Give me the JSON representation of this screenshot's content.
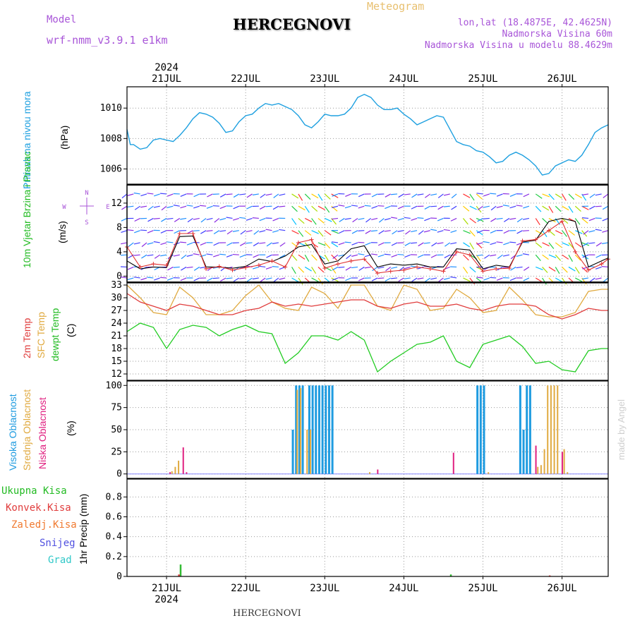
{
  "header": {
    "model_label": "Model",
    "model_name": "wrf-nmm_v3.9.1 e1km",
    "title": "HERCEGNOVI",
    "meteogram": "Meteogram",
    "lonlat": "lon,lat (18.4875E, 42.4625N)",
    "elevation": "Nadmorska Visina 60m",
    "model_elevation": "Nadmorska Visina u modelu 88.4629m"
  },
  "footer": {
    "station": "HERCEGNOVI",
    "credit": "made by Angel"
  },
  "colors": {
    "pressure": "#1ea0e0",
    "wind_speed": "#000000",
    "gust": "#e03030",
    "t2m": "#e03c3c",
    "tsfc": "#e0aa40",
    "dewpt": "#22cc22",
    "high_cloud": "#1e9be0",
    "mid_cloud": "#e0aa40",
    "low_cloud": "#e02080",
    "total_precip": "#33bb33",
    "conv_precip": "#e03c3c"
  },
  "chart_data": [
    {
      "type": "line",
      "panel": "pressure",
      "ylabel": "Pritisak na nivou mora",
      "unit": "(hPa)",
      "year": "2024",
      "days": [
        "21JUL",
        "22JUL",
        "23JUL",
        "24JUL",
        "25JUL",
        "26JUL"
      ],
      "yticks": [
        "1006",
        "1008",
        "1010"
      ],
      "ylim": [
        1005,
        1011.4
      ],
      "x_hours": [
        0,
        1,
        2,
        4,
        6,
        8,
        10,
        12,
        14,
        16,
        18,
        20,
        22,
        24,
        26,
        28,
        30,
        32,
        34,
        36,
        38,
        40,
        42,
        44,
        46,
        48,
        50,
        52,
        54,
        56,
        58,
        60,
        62,
        64,
        66,
        68,
        70,
        72,
        74,
        76,
        78,
        80,
        82,
        84,
        86,
        88,
        90,
        92,
        94,
        96,
        98,
        100,
        102,
        104,
        106,
        108,
        110,
        112,
        114,
        116,
        118,
        120,
        122,
        124,
        126,
        128,
        130,
        132,
        134,
        136,
        138,
        140,
        142,
        144,
        146
      ],
      "values": [
        1008.6,
        1007.6,
        1007.6,
        1007.3,
        1007.4,
        1007.9,
        1008.0,
        1007.9,
        1007.8,
        1008.2,
        1008.7,
        1009.3,
        1009.7,
        1009.6,
        1009.4,
        1009.0,
        1008.4,
        1008.5,
        1009.1,
        1009.5,
        1009.6,
        1010.0,
        1010.3,
        1010.2,
        1010.3,
        1010.1,
        1009.9,
        1009.5,
        1008.9,
        1008.7,
        1009.1,
        1009.6,
        1009.5,
        1009.5,
        1009.6,
        1010.0,
        1010.7,
        1010.9,
        1010.7,
        1010.2,
        1009.9,
        1009.9,
        1010.0,
        1009.6,
        1009.3,
        1008.9,
        1009.1,
        1009.3,
        1009.5,
        1009.4,
        1008.6,
        1007.8,
        1007.6,
        1007.5,
        1007.2,
        1007.1,
        1006.8,
        1006.4,
        1006.5,
        1006.9,
        1007.1,
        1006.9,
        1006.6,
        1006.2,
        1005.6,
        1005.7,
        1006.2,
        1006.4,
        1006.6,
        1006.5,
        1006.9,
        1007.6,
        1008.4,
        1008.7,
        1008.9
      ]
    },
    {
      "type": "line",
      "panel": "wind",
      "ylabel": "10m Vjetar Brzina i Pravac",
      "unit": "(m/s)",
      "compass": {
        "n": "N",
        "w": "W",
        "e": "E",
        "s": "S"
      },
      "yticks": [
        "0",
        "4",
        "8",
        "12"
      ],
      "ylim": [
        -1,
        15
      ],
      "series": [
        {
          "name": "speed",
          "x_hours": [
            0,
            4,
            8,
            12,
            16,
            20,
            24,
            28,
            32,
            36,
            40,
            44,
            48,
            52,
            56,
            60,
            64,
            68,
            72,
            76,
            80,
            84,
            88,
            92,
            96,
            100,
            104,
            108,
            112,
            116,
            120,
            124,
            128,
            132,
            136,
            140,
            144,
            146
          ],
          "values": [
            2.5,
            1.2,
            1.5,
            1.4,
            6.5,
            6.6,
            1.5,
            1.5,
            1.3,
            1.6,
            2.8,
            2.4,
            3.3,
            4.8,
            5.2,
            2.0,
            2.5,
            4.5,
            5.0,
            1.5,
            2.0,
            1.8,
            2.0,
            1.5,
            1.5,
            4.5,
            4.3,
            1.2,
            1.8,
            1.5,
            5.6,
            5.9,
            9.0,
            9.5,
            9.0,
            1.5,
            2.5,
            3.0
          ]
        },
        {
          "name": "gust",
          "x_hours": [
            0,
            4,
            8,
            12,
            16,
            20,
            24,
            28,
            32,
            36,
            40,
            44,
            48,
            52,
            56,
            60,
            64,
            68,
            72,
            76,
            80,
            84,
            88,
            92,
            96,
            100,
            104,
            108,
            112,
            116,
            120,
            124,
            128,
            132,
            136,
            140,
            144,
            146
          ],
          "values": [
            4.8,
            1.5,
            2.0,
            1.8,
            7.0,
            7.0,
            1.2,
            1.6,
            1.0,
            1.4,
            1.8,
            2.5,
            1.5,
            5.5,
            6.0,
            1.3,
            2.0,
            2.5,
            2.8,
            0.5,
            0.8,
            1.0,
            1.5,
            1.2,
            0.8,
            4.0,
            3.5,
            0.8,
            1.2,
            1.3,
            5.8,
            6.0,
            7.5,
            9.0,
            4.0,
            1.0,
            2.0,
            2.8
          ]
        }
      ]
    },
    {
      "type": "line",
      "panel": "temperature",
      "ylabels": [
        "2m Temp",
        "SFC Temp",
        "dewpt Temp"
      ],
      "unit": "(C)",
      "yticks": [
        "12",
        "15",
        "18",
        "21",
        "24",
        "27",
        "30",
        "33"
      ],
      "ylim": [
        10.5,
        33.5
      ],
      "series": [
        {
          "name": "2m Temp",
          "x_hours": [
            0,
            4,
            8,
            12,
            16,
            20,
            24,
            28,
            32,
            36,
            40,
            44,
            48,
            52,
            56,
            60,
            64,
            68,
            72,
            76,
            80,
            84,
            88,
            92,
            96,
            100,
            104,
            108,
            112,
            116,
            120,
            124,
            128,
            132,
            136,
            140,
            144,
            146
          ],
          "values": [
            31.0,
            29.0,
            28.0,
            27.0,
            28.5,
            28.0,
            27.0,
            26.0,
            26.0,
            27.0,
            27.5,
            29.0,
            28.0,
            28.5,
            28.0,
            28.5,
            29.0,
            29.5,
            29.5,
            28.0,
            27.5,
            28.5,
            29.0,
            28.0,
            28.0,
            28.5,
            27.5,
            27.0,
            28.0,
            28.5,
            28.5,
            28.0,
            26.0,
            25.0,
            26.0,
            27.5,
            27.0,
            27.0
          ]
        },
        {
          "name": "SFC Temp",
          "x_hours": [
            0,
            4,
            8,
            12,
            16,
            20,
            24,
            28,
            32,
            36,
            40,
            44,
            48,
            52,
            56,
            60,
            64,
            68,
            72,
            76,
            80,
            84,
            88,
            92,
            96,
            100,
            104,
            108,
            112,
            116,
            120,
            124,
            128,
            132,
            136,
            140,
            144,
            146
          ],
          "values": [
            33.0,
            30.0,
            26.5,
            26.0,
            32.5,
            30.0,
            26.0,
            26.0,
            27.0,
            30.5,
            33.0,
            29.0,
            27.5,
            27.0,
            32.5,
            31.0,
            27.5,
            33.0,
            33.0,
            28.0,
            27.0,
            33.0,
            32.0,
            27.0,
            27.5,
            32.0,
            30.0,
            26.5,
            27.0,
            32.5,
            29.5,
            26.0,
            25.5,
            25.5,
            26.5,
            31.5,
            32.0,
            32.0
          ]
        },
        {
          "name": "dewpt Temp",
          "x_hours": [
            0,
            4,
            8,
            12,
            16,
            20,
            24,
            28,
            32,
            36,
            40,
            44,
            48,
            52,
            56,
            60,
            64,
            68,
            72,
            76,
            80,
            84,
            88,
            92,
            96,
            100,
            104,
            108,
            112,
            116,
            120,
            124,
            128,
            132,
            136,
            140,
            144,
            146
          ],
          "values": [
            22.0,
            24.0,
            23.0,
            18.0,
            22.5,
            23.5,
            23.0,
            21.0,
            22.5,
            23.5,
            22.0,
            21.5,
            14.5,
            17.0,
            21.0,
            21.0,
            20.0,
            22.0,
            20.0,
            12.5,
            15.0,
            17.0,
            19.0,
            19.5,
            21.0,
            15.0,
            13.5,
            19.0,
            20.0,
            21.0,
            18.5,
            14.5,
            15.0,
            13.0,
            12.5,
            17.5,
            18.0,
            18.0
          ]
        }
      ]
    },
    {
      "type": "bar",
      "panel": "cloud",
      "ylabels": [
        "Visoka Oblacnost",
        "Srednja Oblacnost",
        "Niska Oblacnost"
      ],
      "unit": "(%)",
      "yticks": [
        "0",
        "25",
        "50",
        "75",
        "100"
      ],
      "ylim": [
        -5,
        105
      ],
      "series": [
        {
          "name": "Visoka Oblacnost",
          "points": [
            [
              50,
              50
            ],
            [
              51,
              100
            ],
            [
              52,
              100
            ],
            [
              53,
              100
            ],
            [
              55,
              100
            ],
            [
              56,
              100
            ],
            [
              57,
              100
            ],
            [
              58,
              100
            ],
            [
              59,
              100
            ],
            [
              60,
              100
            ],
            [
              61,
              100
            ],
            [
              62,
              100
            ],
            [
              106,
              100
            ],
            [
              107,
              100
            ],
            [
              108,
              100
            ],
            [
              119,
              100
            ],
            [
              120,
              50
            ],
            [
              121,
              100
            ],
            [
              122,
              100
            ]
          ]
        },
        {
          "name": "Srednja Oblacnost",
          "points": [
            [
              13,
              3
            ],
            [
              14,
              8
            ],
            [
              15,
              15
            ],
            [
              51,
              95
            ],
            [
              52,
              97
            ],
            [
              54,
              50
            ],
            [
              55,
              50
            ],
            [
              73,
              2
            ],
            [
              109,
              2
            ],
            [
              124,
              8
            ],
            [
              125,
              10
            ],
            [
              126,
              28
            ],
            [
              127,
              100
            ],
            [
              128,
              100
            ],
            [
              129,
              100
            ],
            [
              130,
              100
            ],
            [
              132,
              28
            ],
            [
              133,
              2
            ]
          ]
        },
        {
          "name": "Niska Oblacnost",
          "points": [
            [
              12,
              2
            ],
            [
              16,
              30
            ],
            [
              17,
              2
            ],
            [
              75,
              5
            ],
            [
              98,
              24
            ],
            [
              123,
              32
            ],
            [
              131,
              25
            ]
          ]
        }
      ]
    },
    {
      "type": "bar",
      "panel": "precip",
      "ylabels": [
        "Ukupna Kisa",
        "Konvek.Kisa",
        "Zaledj.Kisa",
        "Snijeg",
        "Grad"
      ],
      "unit": "1hr Precip (mm)",
      "yticks": [
        "0",
        "0.2",
        "0.4",
        "0.6",
        "0.8"
      ],
      "ylim": [
        0,
        0.98
      ],
      "series": [
        {
          "name": "Ukupna Kisa",
          "points": [
            [
              16,
              0.12
            ],
            [
              98,
              0.02
            ]
          ]
        },
        {
          "name": "Konvek.Kisa",
          "points": [
            [
              15.5,
              0.02
            ],
            [
              128,
              0.01
            ]
          ]
        }
      ]
    }
  ]
}
